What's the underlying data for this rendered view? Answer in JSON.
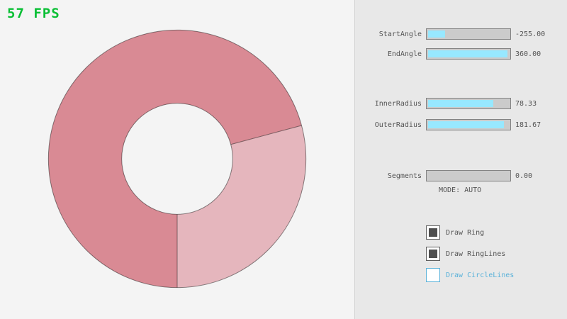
{
  "fps_label": "57 FPS",
  "colors": {
    "fps_green": "#0abf35",
    "canvas_bg": "#f4f4f4",
    "panel_bg": "#e8e8e8",
    "ring_dark": "#d98a94",
    "ring_light": "#e5b6bd",
    "ring_line": "rgba(0,0,0,0.45)",
    "slider_fill": "#97e8ff",
    "slider_track": "#cbcbcb",
    "control_border": "#838383",
    "label_text": "#545454",
    "checkbox_checked": "#4f4f4f",
    "focus_blue": "#5bb2d9"
  },
  "ring": {
    "type": "donut",
    "inner_radius": 78.33,
    "outer_radius": 181.67,
    "start_angle": -255.0,
    "end_angle": 360.0,
    "segments_visual": [
      {
        "name": "overlap-dark",
        "from_deg": 90,
        "to_deg": 345,
        "color": "#d98a94"
      },
      {
        "name": "single-light",
        "from_deg": -15,
        "to_deg": 90,
        "color": "#e5b6bd"
      }
    ]
  },
  "controls": {
    "sliders": [
      {
        "label": "StartAngle",
        "value": "-255.00",
        "fill_pct": 20
      },
      {
        "label": "EndAngle",
        "value": "360.00",
        "fill_pct": 95
      },
      {
        "label": "InnerRadius",
        "value": "78.33",
        "fill_pct": 78
      },
      {
        "label": "OuterRadius",
        "value": "181.67",
        "fill_pct": 91
      },
      {
        "label": "Segments",
        "value": "0.00",
        "fill_pct": 0
      }
    ],
    "mode_label": "MODE: AUTO",
    "checkboxes": [
      {
        "label": "Draw Ring",
        "checked": true
      },
      {
        "label": "Draw RingLines",
        "checked": true
      },
      {
        "label": "Draw CircleLines",
        "checked": false
      }
    ]
  }
}
